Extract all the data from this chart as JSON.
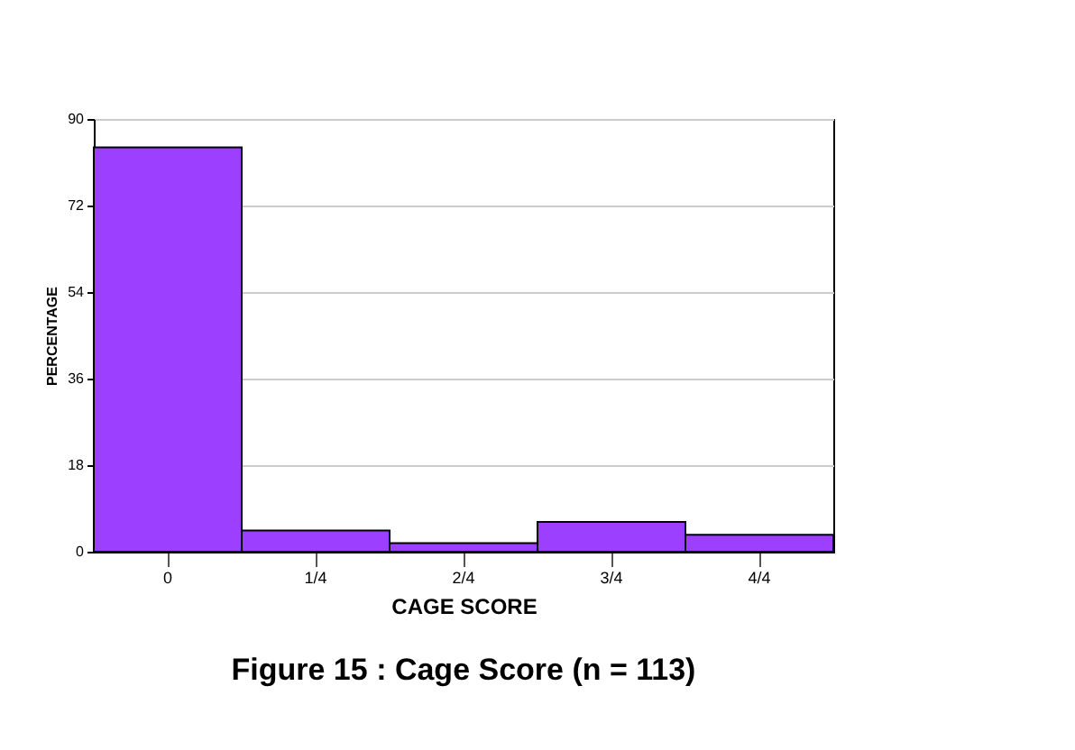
{
  "chart_data": {
    "type": "bar",
    "title": "Figure 15 :   Cage Score (n = 113)",
    "xlabel": "CAGE SCORE",
    "ylabel": "PERCENTAGE",
    "categories": [
      "0",
      "1/4",
      "2/4",
      "3/4",
      "4/4"
    ],
    "values": [
      84.1,
      4.4,
      1.8,
      6.2,
      3.5
    ],
    "color": "#9d3fff",
    "ylim": [
      0,
      90
    ],
    "yticks": [
      0,
      18,
      36,
      54,
      72,
      90
    ],
    "grid": "y"
  }
}
